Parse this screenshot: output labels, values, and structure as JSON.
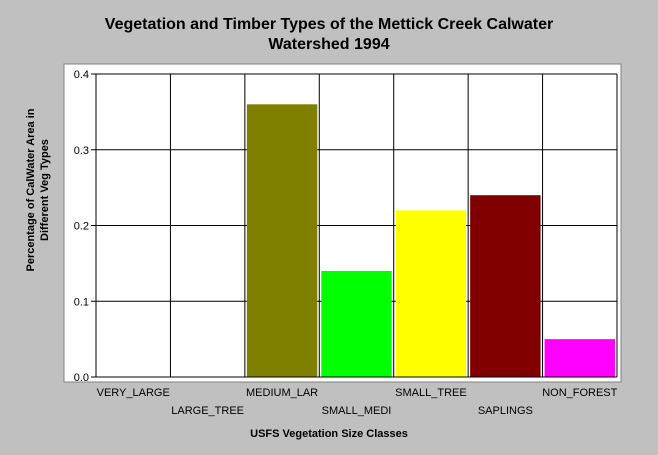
{
  "chart_data": {
    "type": "bar",
    "title_lines": [
      "Vegetation and Timber Types of the Mettick Creek Calwater",
      "Watershed 1994"
    ],
    "xlabel": "USFS Vegetation Size Classes",
    "ylabel_lines": [
      "Percentage of CalWater Area in",
      "Different Veg Types"
    ],
    "categories": [
      "VERY_LARGE",
      "LARGE_TREE",
      "MEDIUM_LAR",
      "SMALL_MEDI",
      "SMALL_TREE",
      "SAPLINGS",
      "NON_FOREST"
    ],
    "values": [
      0,
      0,
      0.36,
      0.14,
      0.22,
      0.24,
      0.05
    ],
    "colors": [
      "#808000",
      "#808000",
      "#808000",
      "#00ff00",
      "#ffff00",
      "#800000",
      "#ff00ff"
    ],
    "ylim": [
      0,
      0.4
    ],
    "yticks": [
      "0.0",
      "0.1",
      "0.2",
      "0.3",
      "0.4"
    ],
    "grid": true,
    "background": "#c0c0c0",
    "plot_background": "#ffffff"
  }
}
